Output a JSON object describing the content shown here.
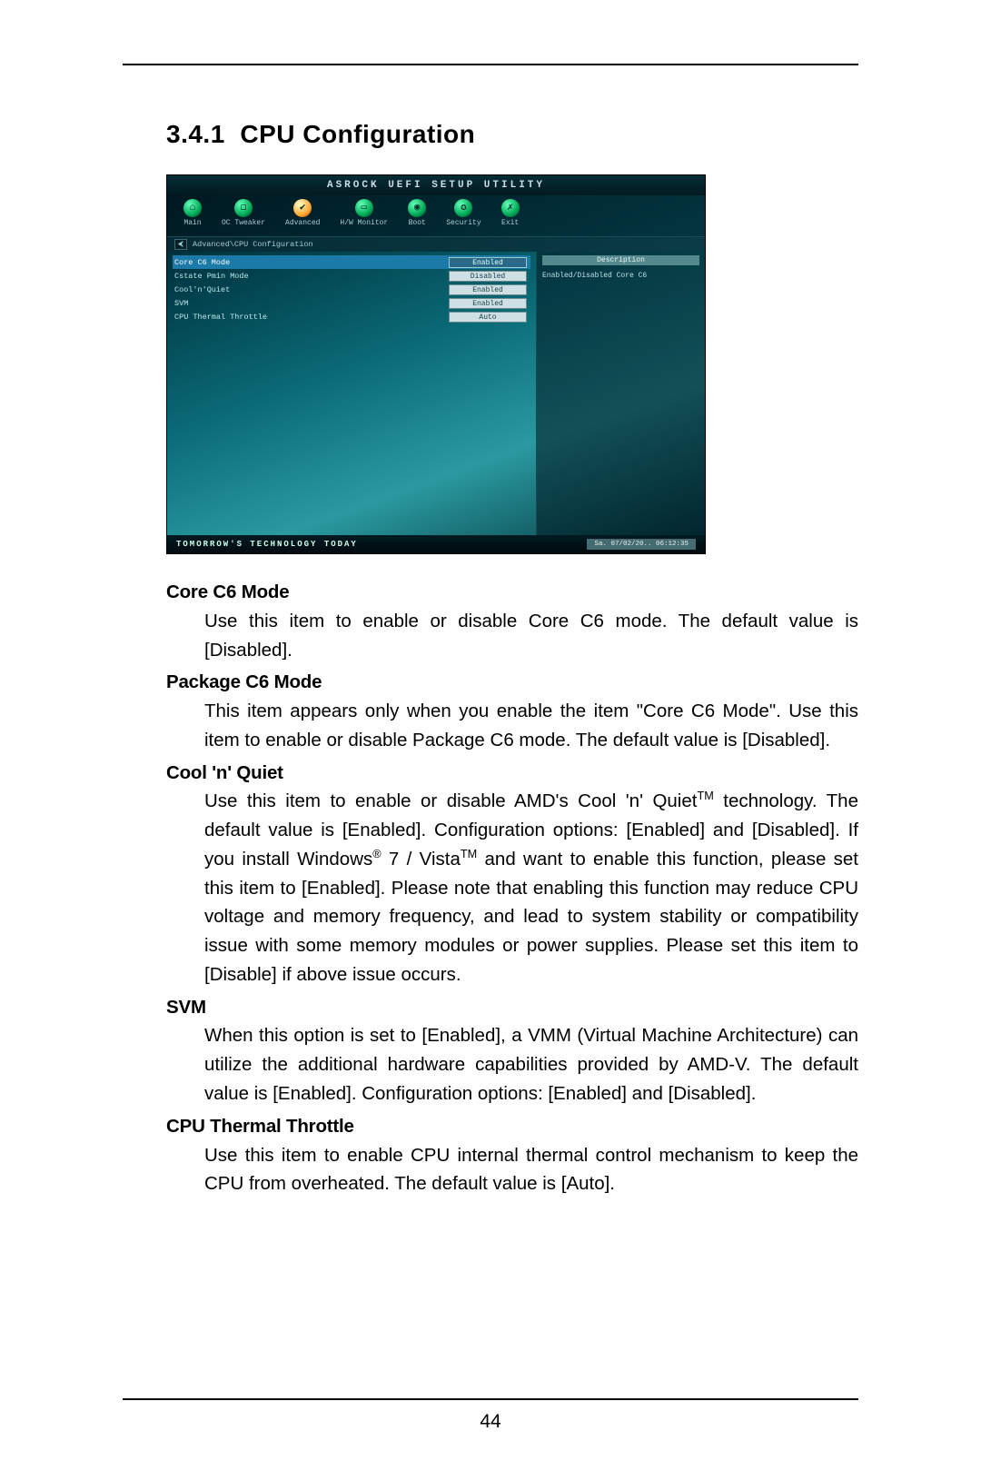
{
  "page": {
    "section_number": "3.4.1",
    "section_title": "CPU Configuration",
    "page_number": "44"
  },
  "bios": {
    "header": "ASROCK UEFI SETUP UTILITY",
    "tabs": [
      {
        "label": "Main",
        "glyph": "⌂"
      },
      {
        "label": "OC Tweaker",
        "glyph": "◻"
      },
      {
        "label": "Advanced",
        "glyph": "✔"
      },
      {
        "label": "H/W Monitor",
        "glyph": "▭"
      },
      {
        "label": "Boot",
        "glyph": "◉"
      },
      {
        "label": "Security",
        "glyph": "✪"
      },
      {
        "label": "Exit",
        "glyph": "✗"
      }
    ],
    "breadcrumb": "Advanced\\CPU Configuration",
    "rows": [
      {
        "label": "Core C6 Mode",
        "value": "Enabled",
        "selected": true
      },
      {
        "label": "Cstate Pmin Mode",
        "value": "Disabled",
        "selected": false
      },
      {
        "label": "Cool'n'Quiet",
        "value": "Enabled",
        "selected": false
      },
      {
        "label": "SVM",
        "value": "Enabled",
        "selected": false
      },
      {
        "label": "CPU Thermal Throttle",
        "value": "Auto",
        "selected": false
      }
    ],
    "desc_header": "Description",
    "desc_text": "Enabled/Disabled Core C6",
    "slogan": "TOMORROW'S TECHNOLOGY TODAY",
    "clock": "Sa. 07/02/20..  06:12:35"
  },
  "terms": [
    {
      "name": "Core C6 Mode",
      "def": "Use this item to enable or disable Core C6 mode. The default value is [Disabled]."
    },
    {
      "name": "Package C6 Mode",
      "def": "This item appears only when you enable the item \"Core C6 Mode\". Use this item to enable or disable Package C6 mode. The default value is [Disabled]."
    },
    {
      "name": "Cool 'n' Quiet",
      "def_html": "Use this item to enable or disable AMD's Cool 'n' Quiet<sup>TM</sup> technology. The default value is [Enabled]. Configuration options: [Enabled] and [Disabled]. If you install Windows<sup>®</sup> 7 / Vista<sup>TM</sup> and want to enable this function, please set this item to [Enabled]. Please note that enabling this function may reduce CPU voltage and memory frequency, and lead to system stability or compatibility issue with some memory modules or power supplies. Please set this item to [Disable] if above issue occurs."
    },
    {
      "name": "SVM",
      "def": "When this option is set to [Enabled], a VMM (Virtual Machine Architecture) can utilize the additional hardware capabilities provided by AMD-V. The default value is [Enabled]. Configuration options: [Enabled] and [Disabled]."
    },
    {
      "name": "CPU Thermal Throttle",
      "def": "Use this item to enable CPU internal thermal control mechanism to keep the CPU from overheated. The default value is [Auto]."
    }
  ],
  "colors": {
    "rule": "#000000",
    "bios_grad_start": "#001a22",
    "bios_grad_mid": "#0a6a76",
    "bios_selected_row": "#1b7aa8",
    "bios_value_bg": "#cfe0e4"
  }
}
